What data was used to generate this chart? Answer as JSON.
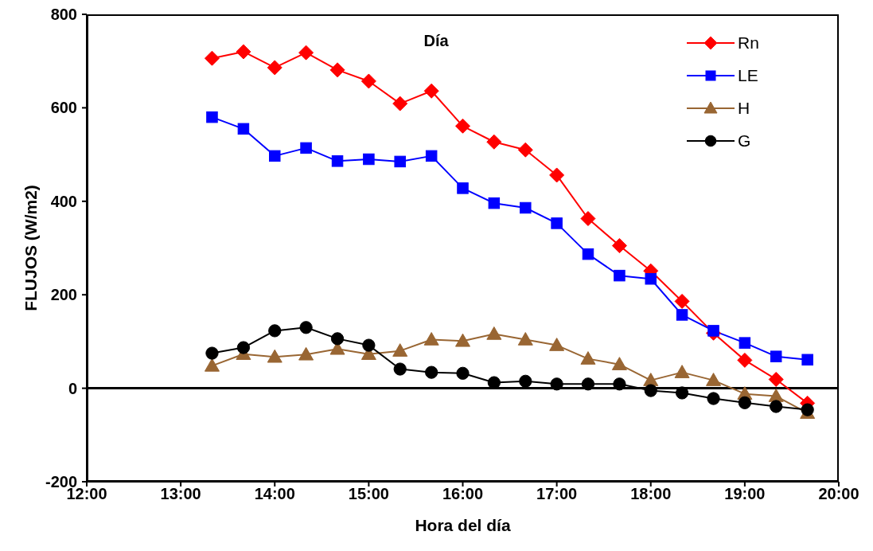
{
  "chart_data": {
    "type": "line",
    "title": "Día",
    "xlabel": "Hora del día",
    "ylabel": "FLUJOS  (W/m2)",
    "x": [
      13.333,
      13.667,
      14,
      14.333,
      14.667,
      15,
      15.333,
      15.667,
      16,
      16.333,
      16.667,
      17,
      17.333,
      17.667,
      18,
      18.333,
      18.667,
      19,
      19.333,
      19.667
    ],
    "series": [
      {
        "name": "Rn",
        "color": "#ff0000",
        "marker": "diamond",
        "values": [
          706,
          720,
          686,
          718,
          681,
          657,
          609,
          636,
          561,
          527,
          510,
          456,
          363,
          305,
          251,
          186,
          118,
          60,
          19,
          -32
        ]
      },
      {
        "name": "LE",
        "color": "#0000ff",
        "marker": "square",
        "values": [
          580,
          555,
          497,
          514,
          486,
          490,
          485,
          497,
          428,
          396,
          386,
          353,
          287,
          241,
          234,
          157,
          123,
          97,
          68,
          61
        ]
      },
      {
        "name": "H",
        "color": "#996633",
        "marker": "triangle",
        "values": [
          48,
          73,
          67,
          72,
          84,
          73,
          80,
          104,
          101,
          116,
          104,
          92,
          63,
          51,
          17,
          34,
          17,
          -12,
          -17,
          -53
        ]
      },
      {
        "name": "G",
        "color": "#000000",
        "marker": "circle",
        "values": [
          75,
          87,
          123,
          130,
          106,
          92,
          41,
          34,
          32,
          12,
          15,
          9,
          9,
          9,
          -5,
          -10,
          -22,
          -31,
          -39,
          -46
        ]
      }
    ],
    "xlim": [
      12,
      20
    ],
    "xticks": [
      {
        "value": 12,
        "label": "12:00"
      },
      {
        "value": 13,
        "label": "13:00"
      },
      {
        "value": 14,
        "label": "14:00"
      },
      {
        "value": 15,
        "label": "15:00"
      },
      {
        "value": 16,
        "label": "16:00"
      },
      {
        "value": 17,
        "label": "17:00"
      },
      {
        "value": 18,
        "label": "18:00"
      },
      {
        "value": 19,
        "label": "19:00"
      },
      {
        "value": 20,
        "label": "20:00"
      }
    ],
    "ylim": [
      -200,
      800
    ],
    "yticks": [
      -200,
      0,
      200,
      400,
      600,
      800
    ],
    "ref_lines": [
      {
        "axis": "y",
        "value": 0,
        "color": "#000000"
      }
    ],
    "legend": "top right",
    "grid": false,
    "line_style": "solid"
  }
}
